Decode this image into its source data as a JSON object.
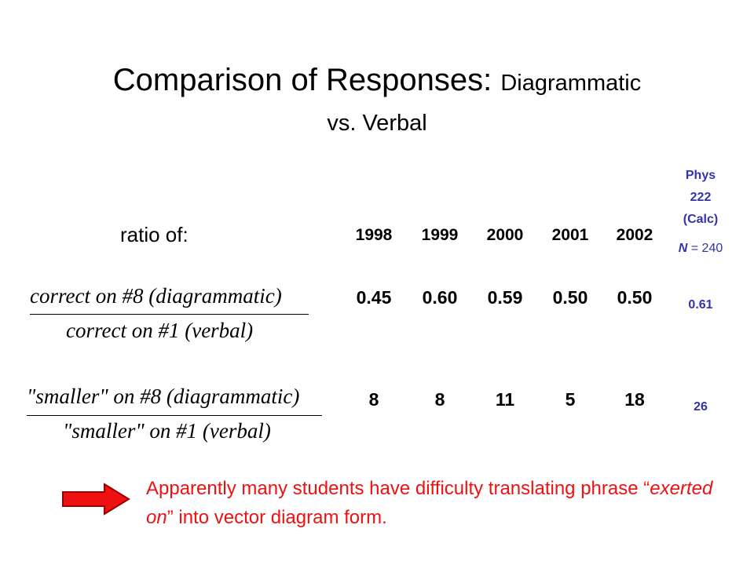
{
  "title": {
    "main": "Comparison of Responses:",
    "sub_1": "Diagrammatic",
    "sub_2": "vs. Verbal"
  },
  "table": {
    "row_label_header": "ratio of:",
    "years": [
      "1998",
      "1999",
      "2000",
      "2001",
      "2002"
    ],
    "extra_column": {
      "header_lines": [
        "Phys",
        "222",
        "(Calc)"
      ],
      "n_symbol": "N",
      "n_value": "= 240"
    },
    "rows": [
      {
        "numerator": "correct on #8 (diagrammatic)",
        "denominator": "correct on #1 (verbal)",
        "values": [
          "0.45",
          "0.60",
          "0.59",
          "0.50",
          "0.50"
        ],
        "extra_value": "0.61"
      },
      {
        "numerator": "\"smaller\" on #8 (diagrammatic)",
        "denominator": "\"smaller\" on #1 (verbal)",
        "values": [
          "8",
          "8",
          "11",
          "5",
          "18"
        ],
        "extra_value": "26"
      }
    ]
  },
  "callout": {
    "before": "Apparently many students have difficulty translating phrase “",
    "emphasis": "exerted on",
    "after": "” into vector diagram form."
  }
}
